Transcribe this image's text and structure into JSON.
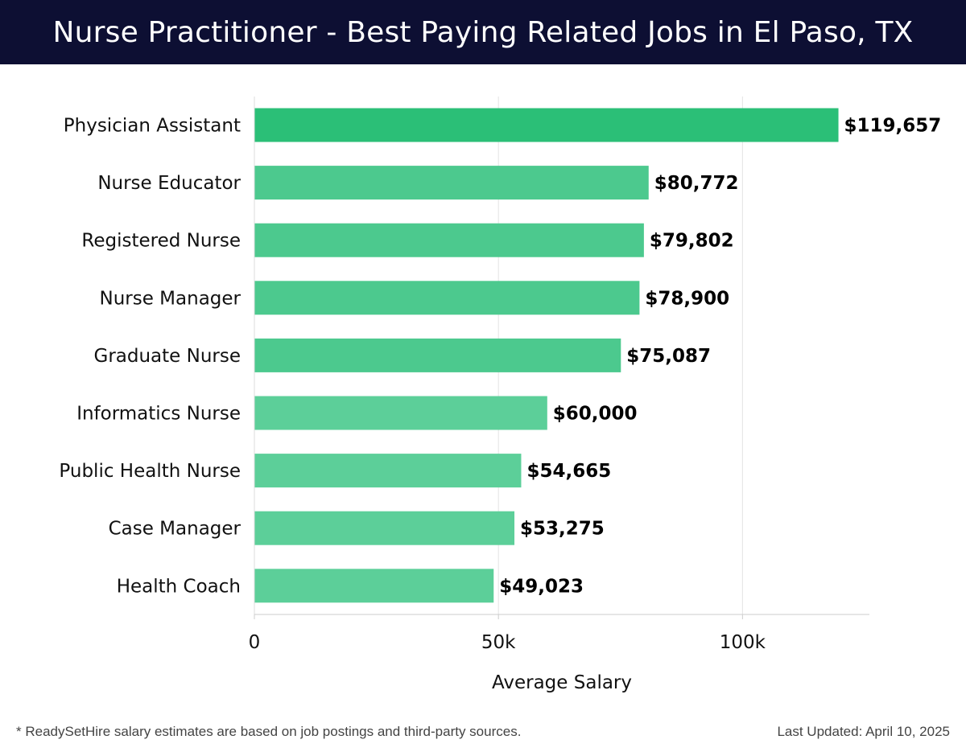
{
  "header": {
    "title": "Nurse Practitioner - Best Paying Related Jobs in El Paso, TX"
  },
  "chart_data": {
    "type": "bar",
    "orientation": "horizontal",
    "categories": [
      "Physician Assistant",
      "Nurse Educator",
      "Registered Nurse",
      "Nurse Manager",
      "Graduate Nurse",
      "Informatics Nurse",
      "Public Health Nurse",
      "Case Manager",
      "Health Coach"
    ],
    "values": [
      119657,
      80772,
      79802,
      78900,
      75087,
      60000,
      54665,
      53275,
      49023
    ],
    "value_labels": [
      "$119,657",
      "$80,772",
      "$79,802",
      "$78,900",
      "$75,087",
      "$60,000",
      "$54,665",
      "$53,275",
      "$49,023"
    ],
    "xlabel": "Average Salary",
    "ylabel": "",
    "xlim": [
      0,
      126000
    ],
    "xticks": [
      0,
      50000,
      100000
    ],
    "xtick_labels": [
      "0",
      "50k",
      "100k"
    ],
    "grid": true,
    "colors": {
      "highlight": "#2bbf77",
      "bar": "#4cc98e",
      "bar_light": "#5ccf99"
    }
  },
  "footer": {
    "note": "* ReadySetHire salary estimates are based on job postings and third-party sources.",
    "updated": "Last Updated: April 10, 2025"
  }
}
